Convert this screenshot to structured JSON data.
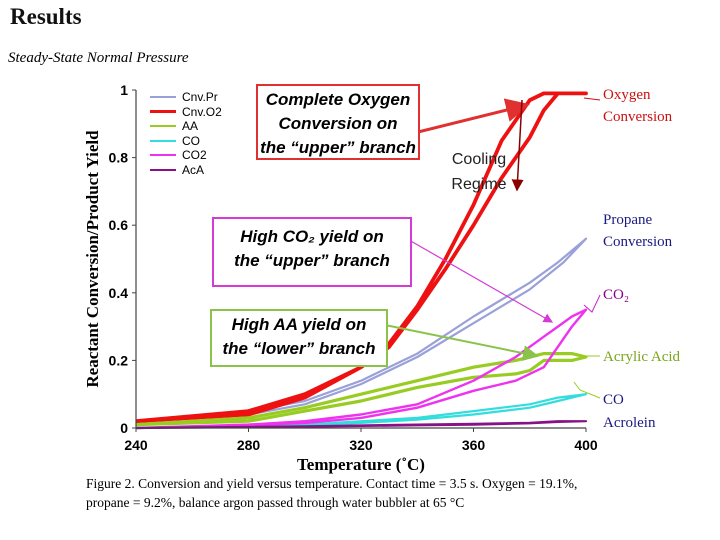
{
  "slide": {
    "title": "Results",
    "subtitle": "Steady-State Normal Pressure",
    "caption_line1": "Figure 2.  Conversion and yield versus temperature.  Contact time = 3.5 s.  Oxygen = 19.1%,",
    "caption_line2": "propane = 9.2%, balance argon passed through water bubbler at 65 °C"
  },
  "annotations": {
    "complete_oxygen": [
      "Complete Oxygen",
      "Conversion on",
      "the “upper” branch"
    ],
    "high_co2": [
      "High CO₂  yield on",
      "the “upper” branch"
    ],
    "high_aa": [
      "High AA yield on",
      "the “lower” branch"
    ],
    "cooling": [
      "Cooling",
      "Regime"
    ],
    "right_labels": {
      "oxygen": [
        "Oxygen",
        "Conversion"
      ],
      "propane": [
        "Propane",
        "Conversion"
      ],
      "co2": "CO₂",
      "acrylic": "Acrylic Acid",
      "co": "CO",
      "acrolein": "Acrolein"
    }
  },
  "colors": {
    "cnv_pr": "#9aa0d8",
    "cnv_o2": "#ee1111",
    "aa": "#99cc22",
    "co": "#33dddd",
    "co2": "#ee33ee",
    "acac": "#881188",
    "red_box": "#e03030",
    "pink_box": "#d63ad6",
    "green_box": "#8bc34a"
  },
  "chart_data": {
    "type": "line",
    "xlabel": "Temperature (˚C)",
    "ylabel": "Reactant Conversion/Product Yield",
    "xlim": [
      240,
      400
    ],
    "ylim": [
      0,
      1
    ],
    "x_ticks": [
      "240",
      "280",
      "320",
      "360",
      "400"
    ],
    "y_ticks": [
      "0",
      "0.2",
      "0.4",
      "0.6",
      "0.8",
      "1"
    ],
    "legend_position": "top-left",
    "series": [
      {
        "name": "Cnv.Pr",
        "x": [
          240,
          280,
          300,
          320,
          340,
          360,
          380,
          390,
          400,
          392,
          380,
          360,
          340,
          320,
          300,
          280,
          240
        ],
        "y": [
          0.02,
          0.05,
          0.08,
          0.14,
          0.22,
          0.33,
          0.43,
          0.49,
          0.56,
          0.49,
          0.41,
          0.31,
          0.21,
          0.13,
          0.07,
          0.04,
          0.02
        ]
      },
      {
        "name": "Cnv.O2",
        "x": [
          240,
          280,
          300,
          320,
          330,
          340,
          350,
          360,
          370,
          380,
          385,
          390,
          400,
          390,
          385,
          380,
          370,
          360,
          350,
          340,
          330,
          320,
          300,
          280,
          240
        ],
        "y": [
          0.02,
          0.05,
          0.1,
          0.18,
          0.24,
          0.35,
          0.47,
          0.6,
          0.74,
          0.86,
          0.94,
          0.99,
          0.99,
          0.99,
          0.99,
          0.97,
          0.85,
          0.66,
          0.5,
          0.36,
          0.25,
          0.18,
          0.09,
          0.04,
          0.02
        ]
      },
      {
        "name": "AA",
        "x": [
          240,
          280,
          300,
          320,
          340,
          360,
          375,
          385,
          395,
          400,
          395,
          385,
          380,
          375,
          360,
          340,
          320,
          300,
          280,
          240
        ],
        "y": [
          0.01,
          0.03,
          0.06,
          0.1,
          0.14,
          0.18,
          0.2,
          0.22,
          0.22,
          0.21,
          0.2,
          0.2,
          0.17,
          0.16,
          0.15,
          0.12,
          0.08,
          0.05,
          0.02,
          0.01
        ]
      },
      {
        "name": "CO",
        "x": [
          240,
          280,
          300,
          320,
          340,
          360,
          380,
          390,
          400,
          390,
          380,
          360,
          340,
          320,
          300,
          280,
          240
        ],
        "y": [
          0,
          0.005,
          0.01,
          0.02,
          0.03,
          0.05,
          0.07,
          0.09,
          0.1,
          0.08,
          0.06,
          0.04,
          0.025,
          0.015,
          0.008,
          0.004,
          0
        ]
      },
      {
        "name": "CO2",
        "x": [
          240,
          280,
          300,
          320,
          340,
          360,
          375,
          385,
          390,
          395,
          400,
          395,
          385,
          375,
          360,
          340,
          320,
          300,
          280,
          240
        ],
        "y": [
          0,
          0.01,
          0.02,
          0.04,
          0.07,
          0.14,
          0.21,
          0.27,
          0.3,
          0.33,
          0.35,
          0.3,
          0.18,
          0.14,
          0.11,
          0.06,
          0.03,
          0.015,
          0.008,
          0
        ]
      },
      {
        "name": "AcA",
        "x": [
          240,
          300,
          340,
          360,
          380,
          390,
          400,
          390,
          380,
          360,
          340,
          300,
          240
        ],
        "y": [
          0,
          0.005,
          0.01,
          0.012,
          0.015,
          0.02,
          0.02,
          0.018,
          0.014,
          0.01,
          0.008,
          0.004,
          0
        ]
      }
    ]
  }
}
